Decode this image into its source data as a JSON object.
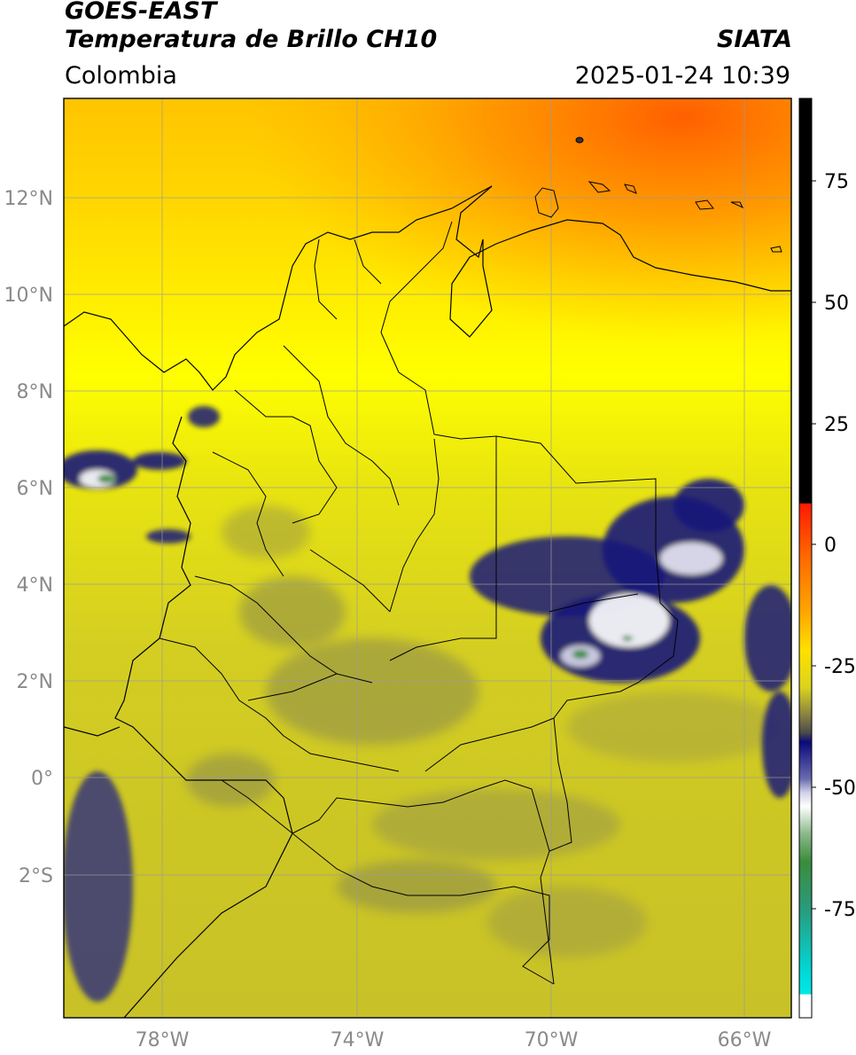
{
  "header": {
    "satellite": "GOES-EAST",
    "product": "Temperatura de Brillo CH10",
    "source": "SIATA",
    "region": "Colombia",
    "timestamp": "2025-01-24 10:39"
  },
  "map": {
    "lon_range": [
      -80,
      -64.8
    ],
    "lat_range": [
      -4.7,
      14.3
    ],
    "gridlines": true,
    "lon_ticks": [
      "78°W",
      "74°W",
      "70°W",
      "66°W"
    ],
    "lat_ticks": [
      "12°N",
      "10°N",
      "8°N",
      "6°N",
      "4°N",
      "2°N",
      "0°",
      "2°S"
    ],
    "background_color": "#d8d010",
    "cold_cloud_color": "#1a1a7a"
  },
  "colorbar": {
    "ticks": [
      "75",
      "50",
      "25",
      "0",
      "-25",
      "-50",
      "-75"
    ],
    "colors": {
      "black": "#000000",
      "red": "#ff1a00",
      "orange": "#ff8c00",
      "yellow": "#ffff00",
      "olive": "#b8b030",
      "gray": "#555555",
      "navy": "#0a0a7a",
      "white": "#ffffff",
      "green": "#3c8c3c",
      "cyan": "#00d8d8"
    }
  }
}
